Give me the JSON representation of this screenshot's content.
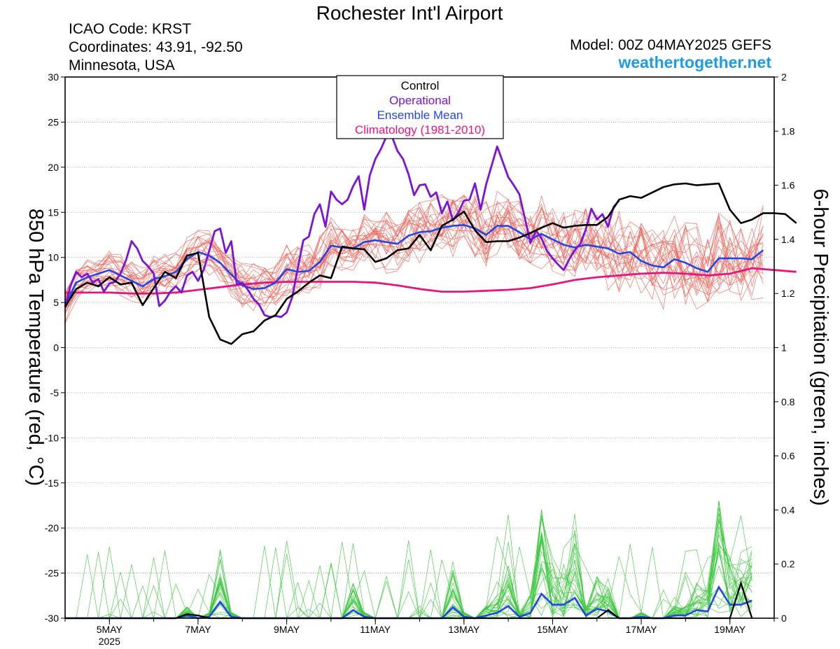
{
  "header": {
    "title": "Rochester Int'l Airport",
    "icao": "ICAO Code: KRST",
    "coords": "Coordinates: 43.91, -92.50",
    "region": "Minnesota, USA",
    "model": "Model: 00Z 04MAY2025 GEFS",
    "site": "weathertogether.net"
  },
  "colors": {
    "members_temp": "#f0645a",
    "members_precip": "#3cc83c",
    "control": "#000000",
    "operational": "#7b14d6",
    "ensemble_mean": "#2346e6",
    "climatology": "#e8157f",
    "site": "#1e9be6"
  },
  "chart_data": {
    "type": "line",
    "ylabel": "850 hPa Temperature (red, °C)",
    "y2label": "6-hour Precipitation (green, inches)",
    "ylim": [
      -30,
      30
    ],
    "y2lim": [
      0,
      2
    ],
    "xlim_days": [
      4,
      20
    ],
    "yticks": [
      30,
      25,
      20,
      15,
      10,
      5,
      0,
      -5,
      -10,
      -15,
      -20,
      -25,
      -30
    ],
    "y2ticks": [
      "2",
      "1.8",
      "1.6",
      "1.4",
      "1.2",
      "1",
      "0.8",
      "0.6",
      "0.4",
      "0.2",
      "0"
    ],
    "xticks": [
      {
        "day": 5,
        "label": "5MAY",
        "sub": "2025"
      },
      {
        "day": 7,
        "label": "7MAY",
        "sub": ""
      },
      {
        "day": 9,
        "label": "9MAY",
        "sub": ""
      },
      {
        "day": 11,
        "label": "11MAY",
        "sub": ""
      },
      {
        "day": 13,
        "label": "13MAY",
        "sub": ""
      },
      {
        "day": 15,
        "label": "15MAY",
        "sub": ""
      },
      {
        "day": 17,
        "label": "17MAY",
        "sub": ""
      },
      {
        "day": 19,
        "label": "19MAY",
        "sub": ""
      }
    ],
    "legend": [
      "Control",
      "Operational",
      "Ensemble Mean",
      "Climatology (1981-2010)"
    ],
    "legend_position": "top-center",
    "grid": "horizontal",
    "temp_day_step": 0.125,
    "precip_day_step": 0.25,
    "series": [
      {
        "name": "Control",
        "day_start": 4,
        "values": [
          4.5,
          6.5,
          7.2,
          6.8,
          7.8,
          7.0,
          7.2,
          4.7,
          6.6,
          8.4,
          7.7,
          10.2,
          10.5,
          3.4,
          0.9,
          0.4,
          1.5,
          1.8,
          3.0,
          3.6,
          5.4,
          6.2,
          7.2,
          8.0,
          7.7,
          11.2,
          11.0,
          10.9,
          9.5,
          9.9,
          10.8,
          11.0,
          12.5,
          10.8,
          13.5,
          14.2,
          15.1,
          13.0,
          11.7,
          11.8,
          11.8,
          12.2,
          12.7,
          13.3,
          13.8,
          13.3,
          13.5,
          13.6,
          13.6,
          14.5,
          16.4,
          16.8,
          16.6,
          17.2,
          17.8,
          18.1,
          18.2,
          18.0,
          18.1,
          18.2,
          15.3,
          13.8,
          14.2,
          14.9,
          14.9,
          14.8,
          13.8
        ]
      },
      {
        "name": "Operational",
        "day_start": 4,
        "values": [
          4.5,
          6.9,
          8.4,
          7.8,
          8.2,
          7.2,
          7.6,
          6.2,
          7.1,
          7.3,
          8.2,
          9.7,
          11.8,
          11.0,
          9.6,
          9.0,
          8.2,
          4.6,
          5.2,
          6.2,
          6.8,
          6.1,
          8.0,
          8.4,
          7.4,
          8.6,
          10.7,
          12.9,
          13.2,
          10.5,
          11.8,
          7.0,
          7.2,
          6.4,
          5.4,
          4.8,
          3.6,
          3.4,
          3.5,
          3.4,
          3.9,
          5.6,
          8.8,
          11.9,
          12.3,
          14.8,
          15.9,
          13.4,
          17.3,
          16.4,
          15.9,
          16.4,
          17.9,
          19.0,
          15.3,
          19.1,
          20.9,
          22.0,
          23.4,
          23.4,
          21.8,
          20.9,
          19.2,
          16.9,
          18.0,
          18.1,
          16.7,
          17.2,
          14.9,
          16.2,
          14.1,
          15.0,
          16.3,
          16.4,
          18.2,
          15.3,
          18.1,
          20.2,
          22.3,
          20.6,
          18.9,
          18.0,
          17.0,
          14.3,
          11.6,
          13.0,
          12.1,
          10.7,
          9.9,
          9.2,
          8.6,
          9.8,
          10.8,
          11.5,
          13.1,
          15.4,
          14.2,
          14.8,
          13.4,
          15.6,
          16.3
        ]
      },
      {
        "name": "Ensemble Mean",
        "day_start": 4,
        "values": [
          4.5,
          7.2,
          7.8,
          8.2,
          8.6,
          8.0,
          7.4,
          6.8,
          7.6,
          7.9,
          8.4,
          9.8,
          10.6,
          10.2,
          9.4,
          8.1,
          6.9,
          6.5,
          6.6,
          7.2,
          8.7,
          8.4,
          8.5,
          9.5,
          11.3,
          11.1,
          11.0,
          11.7,
          11.9,
          11.7,
          11.5,
          12.4,
          12.8,
          12.9,
          13.3,
          13.5,
          13.6,
          13.2,
          12.5,
          13.5,
          13.5,
          12.8,
          12.0,
          12.6,
          12.0,
          11.4,
          11.1,
          11.4,
          11.2,
          11.0,
          10.4,
          10.6,
          9.6,
          9.1,
          8.9,
          9.8,
          9.4,
          8.8,
          8.4,
          9.9,
          9.9,
          9.9,
          9.8,
          10.8
        ]
      },
      {
        "name": "Climatology (1981-2010)",
        "day_start": 4,
        "values": [
          6.1,
          6.1,
          6.1,
          6.0,
          6.0,
          6.1,
          6.4,
          6.7,
          7.0,
          7.2,
          7.3,
          7.3,
          7.3,
          7.3,
          7.2,
          6.9,
          6.5,
          6.2,
          6.2,
          6.3,
          6.4,
          6.6,
          7.0,
          7.5,
          7.8,
          8.0,
          8.2,
          8.3,
          8.2,
          8.0,
          8.2,
          8.8,
          8.6,
          8.4
        ]
      }
    ],
    "precip_series": [
      {
        "name": "Ensemble Mean",
        "values": [
          0,
          0,
          0,
          0,
          0,
          0,
          0,
          0,
          0,
          0,
          0,
          0.01,
          0.0,
          0.005,
          0.06,
          0.005,
          0,
          0,
          0,
          0,
          0,
          0,
          0,
          0,
          0,
          0,
          0.03,
          0.005,
          0,
          0,
          0,
          0,
          0,
          0,
          0,
          0.04,
          0.005,
          0,
          0.01,
          0.02,
          0.045,
          0.005,
          0.02,
          0.09,
          0.05,
          0.05,
          0.075,
          0.01,
          0.035,
          0.025,
          0,
          0,
          0.005,
          0,
          0,
          0.01,
          0.01,
          0.03,
          0.025,
          0.115,
          0.05,
          0.05,
          0.065
        ]
      },
      {
        "name": "Control",
        "values": [
          0,
          0,
          0,
          0,
          0,
          0,
          0,
          0,
          0,
          0,
          0,
          0.015,
          0.01,
          0,
          0,
          0,
          0,
          0,
          0,
          0,
          0,
          0,
          0,
          0,
          0,
          0,
          0,
          0,
          0,
          0,
          0,
          0,
          0,
          0,
          0,
          0,
          0,
          0,
          0,
          0,
          0,
          0,
          0,
          0,
          0,
          0,
          0,
          0,
          0,
          0.03,
          0,
          0,
          0,
          0,
          0,
          0,
          0,
          0,
          0,
          0,
          0,
          0.13,
          0
        ]
      }
    ]
  }
}
